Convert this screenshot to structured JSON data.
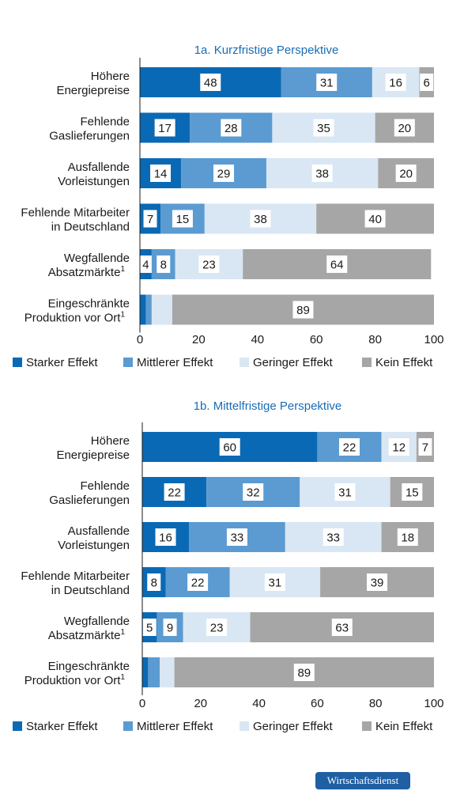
{
  "colors": {
    "starker": "#0a69b4",
    "mittlerer": "#5b9bd1",
    "geringer": "#d9e7f4",
    "kein": "#a6a6a6",
    "title": "#1a6db5"
  },
  "legend": [
    "Starker Effekt",
    "Mittlerer Effekt",
    "Geringer Effekt",
    "Kein Effekt"
  ],
  "footnote_marker": "1",
  "badge": "Wirtschaftsdienst",
  "chart_data": [
    {
      "type": "bar",
      "orientation": "horizontal",
      "stacked": true,
      "title": "1a. Kurzfristige Perspektive",
      "xlim": [
        0,
        100
      ],
      "xticks": [
        0,
        20,
        40,
        60,
        80,
        100
      ],
      "categories": [
        [
          "Höhere",
          "Energiepreise"
        ],
        [
          "Fehlende",
          "Gaslieferungen"
        ],
        [
          "Ausfallende",
          "Vorleistungen"
        ],
        [
          "Fehlende Mitarbeiter",
          "in Deutschland"
        ],
        [
          "Wegfallende",
          "Absatzmärkte"
        ],
        [
          "Eingeschränkte",
          "Produktion vor Ort"
        ]
      ],
      "footnote_rows": [
        4,
        5
      ],
      "series": [
        {
          "name": "Starker Effekt",
          "values": [
            48,
            17,
            14,
            7,
            4,
            2
          ]
        },
        {
          "name": "Mittlerer Effekt",
          "values": [
            31,
            28,
            29,
            15,
            8,
            2
          ]
        },
        {
          "name": "Geringer Effekt",
          "values": [
            16,
            35,
            38,
            38,
            23,
            7
          ]
        },
        {
          "name": "Kein Effekt",
          "values": [
            6,
            20,
            20,
            40,
            64,
            89
          ]
        }
      ],
      "labels": [
        [
          "48",
          "31",
          "16",
          "6"
        ],
        [
          "17",
          "28",
          "35",
          "20"
        ],
        [
          "14",
          "29",
          "38",
          "20"
        ],
        [
          "7",
          "15",
          "38",
          "40"
        ],
        [
          "4",
          "8",
          "23",
          "64"
        ],
        [
          "",
          "",
          "",
          "89"
        ]
      ],
      "legend_position": "bottom"
    },
    {
      "type": "bar",
      "orientation": "horizontal",
      "stacked": true,
      "title": "1b. Mittelfristige Perspektive",
      "xlim": [
        0,
        100
      ],
      "xticks": [
        0,
        20,
        40,
        60,
        80,
        100
      ],
      "categories": [
        [
          "Höhere",
          "Energiepreise"
        ],
        [
          "Fehlende",
          "Gaslieferungen"
        ],
        [
          "Ausfallende",
          "Vorleistungen"
        ],
        [
          "Fehlende Mitarbeiter",
          "in Deutschland"
        ],
        [
          "Wegfallende",
          "Absatzmärkte"
        ],
        [
          "Eingeschränkte",
          "Produktion vor Ort"
        ]
      ],
      "footnote_rows": [
        4,
        5
      ],
      "series": [
        {
          "name": "Starker Effekt",
          "values": [
            60,
            22,
            16,
            8,
            5,
            2
          ]
        },
        {
          "name": "Mittlerer Effekt",
          "values": [
            22,
            32,
            33,
            22,
            9,
            4
          ]
        },
        {
          "name": "Geringer Effekt",
          "values": [
            12,
            31,
            33,
            31,
            23,
            5
          ]
        },
        {
          "name": "Kein Effekt",
          "values": [
            7,
            15,
            18,
            39,
            63,
            89
          ]
        }
      ],
      "labels": [
        [
          "60",
          "22",
          "12",
          "7"
        ],
        [
          "22",
          "32",
          "31",
          "15"
        ],
        [
          "16",
          "33",
          "33",
          "18"
        ],
        [
          "8",
          "22",
          "31",
          "39"
        ],
        [
          "5",
          "9",
          "23",
          "63"
        ],
        [
          "",
          "",
          "",
          "89"
        ]
      ],
      "legend_position": "bottom"
    }
  ]
}
